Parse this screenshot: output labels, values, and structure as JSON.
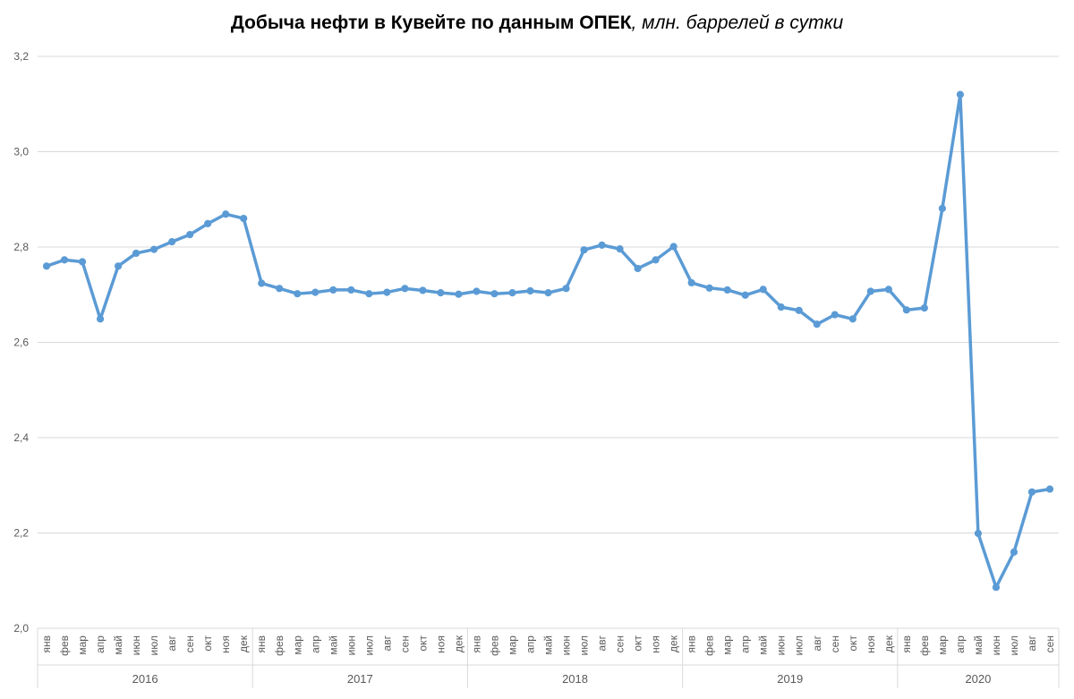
{
  "chart_data": {
    "type": "line",
    "title": "Добыча нефти в Кувейте по данным ОПЕК",
    "subtitle": ", млн. баррелей в сутки",
    "ylim": [
      2.0,
      3.2
    ],
    "yticks": [
      "2,0",
      "2,2",
      "2,4",
      "2,6",
      "2,8",
      "3,0",
      "3,2"
    ],
    "ytick_values": [
      2.0,
      2.2,
      2.4,
      2.6,
      2.8,
      3.0,
      3.2
    ],
    "grid": true,
    "color": "#5b9bd5",
    "years": [
      "2016",
      "2017",
      "2018",
      "2019",
      "2020"
    ],
    "year_month_counts": [
      12,
      12,
      12,
      12,
      9
    ],
    "months": [
      "янв",
      "фев",
      "мар",
      "апр",
      "май",
      "июн",
      "июл",
      "авг",
      "сен",
      "окт",
      "ноя",
      "дек"
    ],
    "series": [
      {
        "values": [
          2.76,
          2.773,
          2.769,
          2.649,
          2.76,
          2.787,
          2.795,
          2.811,
          2.826,
          2.849,
          2.869,
          2.86,
          2.724,
          2.713,
          2.702,
          2.705,
          2.71,
          2.71,
          2.702,
          2.705,
          2.713,
          2.709,
          2.704,
          2.701,
          2.707,
          2.702,
          2.704,
          2.708,
          2.704,
          2.713,
          2.794,
          2.804,
          2.796,
          2.755,
          2.773,
          2.801,
          2.725,
          2.714,
          2.71,
          2.699,
          2.711,
          2.674,
          2.667,
          2.638,
          2.658,
          2.649,
          2.707,
          2.711,
          2.668,
          2.672,
          2.881,
          3.12,
          2.199,
          2.086,
          2.16,
          2.286,
          2.292
        ]
      }
    ]
  }
}
